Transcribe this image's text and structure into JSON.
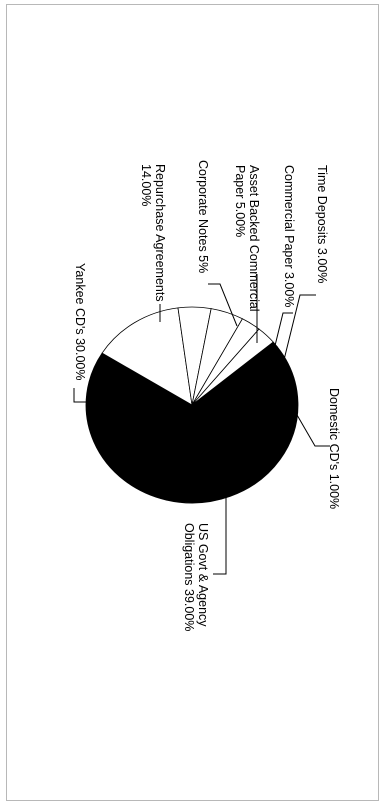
{
  "chart_data": {
    "type": "pie",
    "title": "",
    "categories": [
      "Domestic CD's",
      "US Govt & Agency Obligations",
      "Yankee CD's",
      "Repurchase Agreements",
      "Corporate Notes",
      "Asset Backed Commercial Paper",
      "Commercial Paper",
      "Time Deposits"
    ],
    "values": [
      1.0,
      39.0,
      30.0,
      14.0,
      5.0,
      5.0,
      3.0,
      3.0
    ],
    "colors": [
      "#000000",
      "#000000",
      "#000000",
      "#ffffff",
      "#ffffff",
      "#ffffff",
      "#ffffff",
      "#ffffff"
    ],
    "labels": [
      {
        "lines": [
          "Domestic CD's 1.00%"
        ]
      },
      {
        "lines": [
          "US Govt & Agency",
          "Obligations 39.00%"
        ]
      },
      {
        "lines": [
          "Yankee CD's 30.00%"
        ]
      },
      {
        "lines": [
          "Repurchase Agreements",
          "14.00%"
        ]
      },
      {
        "lines": [
          "Corporate Notes 5%"
        ]
      },
      {
        "lines": [
          "Asset Backed Commercial",
          "Paper 5.00%"
        ]
      },
      {
        "lines": [
          "Commercial Paper 3.00%"
        ]
      },
      {
        "lines": [
          "Time Deposits 3.00%"
        ]
      }
    ],
    "legend": "none"
  }
}
